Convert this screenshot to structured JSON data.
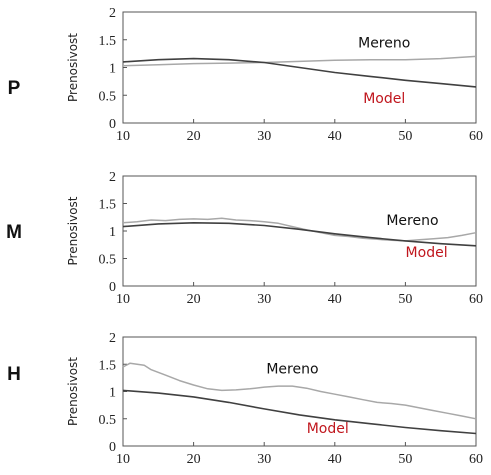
{
  "colors": {
    "measured": "#a8a8a8",
    "model": "#404040",
    "model_label": "#c0161d",
    "axis": "#555555"
  },
  "chart_data": [
    {
      "type": "line",
      "side_label": "P",
      "ylabel": "Prenosivost",
      "xlim": [
        10,
        60
      ],
      "ylim": [
        0,
        2
      ],
      "xticks": [
        10,
        20,
        30,
        40,
        50,
        60
      ],
      "yticks": [
        0,
        0.5,
        1,
        1.5,
        2
      ],
      "grid": false,
      "series": [
        {
          "name": "Mereno",
          "role": "measured",
          "x": [
            10,
            15,
            20,
            25,
            30,
            35,
            40,
            45,
            50,
            55,
            60
          ],
          "y": [
            1.03,
            1.05,
            1.07,
            1.08,
            1.09,
            1.11,
            1.13,
            1.14,
            1.14,
            1.16,
            1.2
          ]
        },
        {
          "name": "Model",
          "role": "model",
          "x": [
            10,
            15,
            20,
            25,
            30,
            35,
            40,
            45,
            50,
            55,
            60
          ],
          "y": [
            1.1,
            1.14,
            1.16,
            1.14,
            1.09,
            1.0,
            0.91,
            0.84,
            0.77,
            0.71,
            0.65
          ]
        }
      ],
      "annotations": [
        {
          "text": "Mereno",
          "x": 47,
          "y": 1.45,
          "role": "measured"
        },
        {
          "text": "Model",
          "x": 47,
          "y": 0.45,
          "role": "model"
        }
      ]
    },
    {
      "type": "line",
      "side_label": "M",
      "ylabel": "Prenosivost",
      "xlim": [
        10,
        60
      ],
      "ylim": [
        0,
        2
      ],
      "xticks": [
        10,
        20,
        30,
        40,
        50,
        60
      ],
      "yticks": [
        0,
        0.5,
        1,
        1.5,
        2
      ],
      "grid": false,
      "series": [
        {
          "name": "Mereno",
          "role": "measured",
          "x": [
            10,
            12,
            14,
            16,
            18,
            20,
            22,
            24,
            26,
            28,
            30,
            32,
            34,
            36,
            38,
            40,
            42,
            44,
            46,
            48,
            50,
            52,
            54,
            56,
            58,
            60
          ],
          "y": [
            1.15,
            1.17,
            1.2,
            1.19,
            1.21,
            1.22,
            1.21,
            1.23,
            1.2,
            1.19,
            1.17,
            1.14,
            1.08,
            1.02,
            0.97,
            0.92,
            0.9,
            0.87,
            0.85,
            0.83,
            0.82,
            0.84,
            0.86,
            0.88,
            0.92,
            0.97
          ]
        },
        {
          "name": "Model",
          "role": "model",
          "x": [
            10,
            15,
            20,
            25,
            30,
            35,
            40,
            45,
            50,
            55,
            60
          ],
          "y": [
            1.08,
            1.13,
            1.15,
            1.14,
            1.1,
            1.03,
            0.95,
            0.88,
            0.82,
            0.77,
            0.73
          ]
        }
      ],
      "annotations": [
        {
          "text": "Mereno",
          "x": 51,
          "y": 1.2,
          "role": "measured"
        },
        {
          "text": "Model",
          "x": 53,
          "y": 0.62,
          "role": "model"
        }
      ]
    },
    {
      "type": "line",
      "side_label": "H",
      "ylabel": "Prenosivost",
      "xlim": [
        10,
        60
      ],
      "ylim": [
        0,
        2
      ],
      "xticks": [
        10,
        20,
        30,
        40,
        50,
        60
      ],
      "yticks": [
        0,
        0.5,
        1,
        1.5,
        2
      ],
      "grid": false,
      "series": [
        {
          "name": "Mereno",
          "role": "measured",
          "x": [
            10,
            11,
            12,
            13,
            14,
            16,
            18,
            20,
            22,
            24,
            26,
            28,
            30,
            32,
            34,
            36,
            38,
            40,
            42,
            44,
            46,
            48,
            50,
            52,
            54,
            56,
            58,
            60
          ],
          "y": [
            1.45,
            1.52,
            1.5,
            1.48,
            1.4,
            1.3,
            1.2,
            1.12,
            1.05,
            1.02,
            1.03,
            1.05,
            1.08,
            1.1,
            1.1,
            1.06,
            1.0,
            0.95,
            0.9,
            0.85,
            0.8,
            0.78,
            0.75,
            0.7,
            0.65,
            0.6,
            0.55,
            0.5
          ]
        },
        {
          "name": "Model",
          "role": "model",
          "x": [
            10,
            15,
            20,
            25,
            30,
            35,
            40,
            45,
            50,
            55,
            60
          ],
          "y": [
            1.02,
            0.97,
            0.9,
            0.8,
            0.68,
            0.57,
            0.48,
            0.41,
            0.34,
            0.28,
            0.23
          ]
        }
      ],
      "annotations": [
        {
          "text": "Mereno",
          "x": 34,
          "y": 1.42,
          "role": "measured"
        },
        {
          "text": "Model",
          "x": 39,
          "y": 0.33,
          "role": "model"
        }
      ]
    }
  ]
}
